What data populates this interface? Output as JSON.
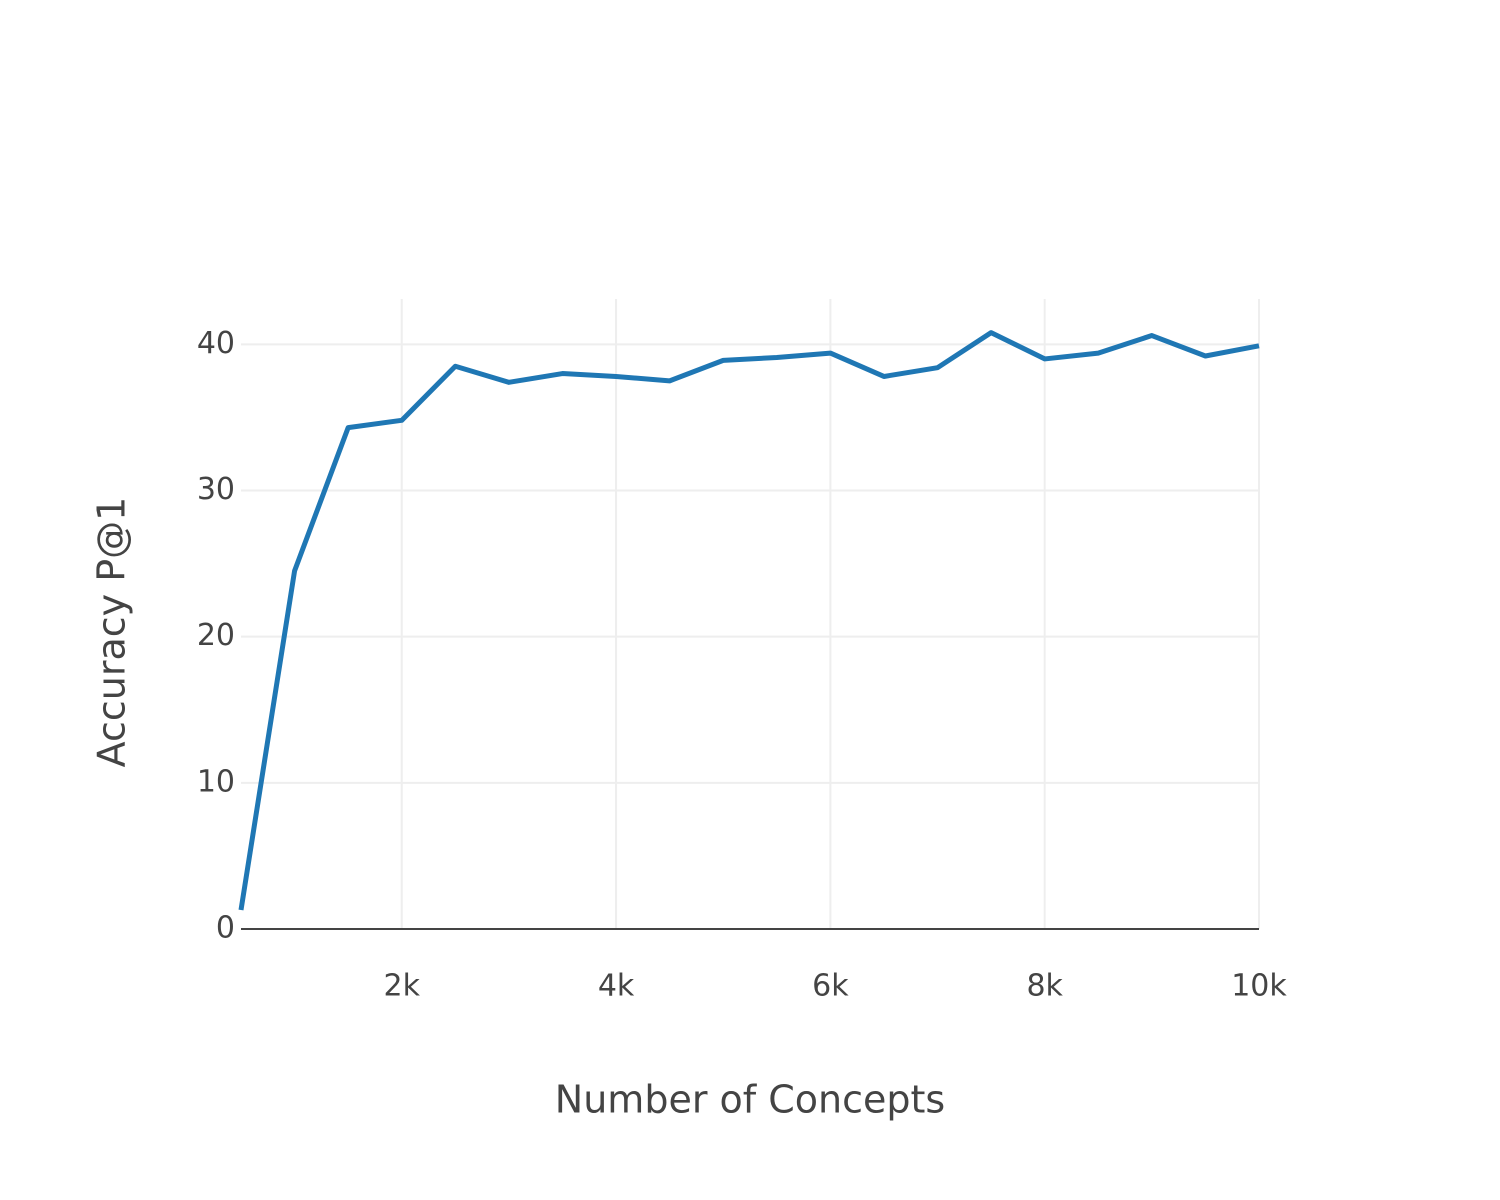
{
  "chart_data": {
    "type": "line",
    "x_label": "Number of Concepts",
    "y_label": "Accuracy P@1",
    "x": [
      500,
      1000,
      1500,
      2000,
      2500,
      3000,
      3500,
      4000,
      4500,
      5000,
      5500,
      6000,
      6500,
      7000,
      7500,
      8000,
      8500,
      9000,
      9500,
      10000
    ],
    "series": [
      {
        "color": "#1f77b4",
        "values": [
          1.3,
          24.5,
          34.3,
          34.8,
          38.5,
          37.4,
          38.0,
          37.8,
          37.5,
          38.9,
          39.1,
          39.4,
          37.8,
          38.4,
          40.8,
          39.0,
          39.4,
          40.6,
          39.2,
          39.9
        ]
      }
    ],
    "xlim": [
      500,
      10000
    ],
    "ylim": [
      0,
      43.1
    ],
    "xticks": [
      {
        "value": 2000,
        "label": "2k"
      },
      {
        "value": 4000,
        "label": "4k"
      },
      {
        "value": 6000,
        "label": "6k"
      },
      {
        "value": 8000,
        "label": "8k"
      },
      {
        "value": 10000,
        "label": "10k"
      }
    ],
    "yticks": [
      0,
      10,
      20,
      30,
      40
    ],
    "grid": true
  }
}
